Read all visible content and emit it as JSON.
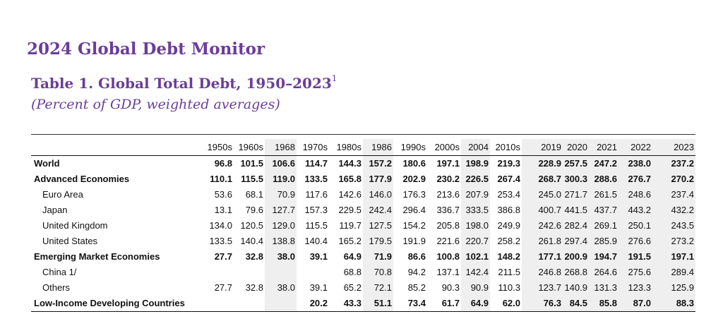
{
  "header": {
    "report_title": "2024 Global Debt Monitor",
    "table_title": "Table 1. Global Total Debt, 1950–2023",
    "table_title_footnote": "1",
    "table_subtitle": "(Percent of GDP, weighted averages)"
  },
  "colors": {
    "title_purple": "#6a3d9a",
    "shade_gray": "#efefef"
  },
  "table": {
    "columns": [
      "1950s",
      "1960s",
      "1968",
      "1970s",
      "1980s",
      "1986",
      "1990s",
      "2000s",
      "2004",
      "2010s",
      "2019",
      "2020",
      "2021",
      "2022",
      "2023"
    ],
    "rows": [
      {
        "label": "World",
        "bold": true,
        "indent": false,
        "values": [
          "96.8",
          "101.5",
          "106.6",
          "114.7",
          "144.3",
          "157.2",
          "180.6",
          "197.1",
          "198.9",
          "219.3",
          "228.9",
          "257.5",
          "247.2",
          "238.0",
          "237.2"
        ]
      },
      {
        "label": "Advanced Economies",
        "bold": true,
        "indent": false,
        "values": [
          "110.1",
          "115.5",
          "119.0",
          "133.5",
          "165.8",
          "177.9",
          "202.9",
          "230.2",
          "226.5",
          "267.4",
          "268.7",
          "300.3",
          "288.6",
          "276.7",
          "270.2"
        ]
      },
      {
        "label": "Euro Area",
        "bold": false,
        "indent": true,
        "values": [
          "53.6",
          "68.1",
          "70.9",
          "117.6",
          "142.6",
          "146.0",
          "176.3",
          "213.6",
          "207.9",
          "253.4",
          "245.0",
          "271.7",
          "261.5",
          "248.6",
          "237.4"
        ]
      },
      {
        "label": "Japan",
        "bold": false,
        "indent": true,
        "values": [
          "13.1",
          "79.6",
          "127.7",
          "157.3",
          "229.5",
          "242.4",
          "296.4",
          "336.7",
          "333.5",
          "386.8",
          "400.7",
          "441.5",
          "437.7",
          "443.2",
          "432.2"
        ]
      },
      {
        "label": "United Kingdom",
        "bold": false,
        "indent": true,
        "values": [
          "134.0",
          "120.5",
          "129.0",
          "115.5",
          "119.7",
          "127.5",
          "154.2",
          "205.8",
          "198.0",
          "249.9",
          "242.6",
          "282.4",
          "269.1",
          "250.1",
          "243.5"
        ]
      },
      {
        "label": "United States",
        "bold": false,
        "indent": true,
        "values": [
          "133.5",
          "140.4",
          "138.8",
          "140.4",
          "165.2",
          "179.5",
          "191.9",
          "221.6",
          "220.7",
          "258.2",
          "261.8",
          "297.4",
          "285.9",
          "276.6",
          "273.2"
        ]
      },
      {
        "label": "Emerging Market Economies",
        "bold": true,
        "indent": false,
        "values": [
          "27.7",
          "32.8",
          "38.0",
          "39.1",
          "64.9",
          "71.9",
          "86.6",
          "100.8",
          "102.1",
          "148.2",
          "177.1",
          "200.9",
          "194.7",
          "191.5",
          "197.1"
        ]
      },
      {
        "label": "China 1/",
        "bold": false,
        "indent": true,
        "values": [
          "",
          "",
          "",
          "",
          "68.8",
          "70.8",
          "94.2",
          "137.1",
          "142.4",
          "211.5",
          "246.8",
          "268.8",
          "264.6",
          "275.6",
          "289.4"
        ]
      },
      {
        "label": "Others",
        "bold": false,
        "indent": true,
        "values": [
          "27.7",
          "32.8",
          "38.0",
          "39.1",
          "65.2",
          "72.1",
          "85.2",
          "90.3",
          "90.9",
          "110.3",
          "123.7",
          "140.9",
          "131.3",
          "123.3",
          "125.9"
        ]
      },
      {
        "label": "Low-Income Developing Countries",
        "bold": true,
        "indent": false,
        "values": [
          "",
          "",
          "",
          "20.2",
          "43.3",
          "51.1",
          "73.4",
          "61.7",
          "64.9",
          "62.0",
          "76.3",
          "84.5",
          "85.8",
          "87.0",
          "88.3"
        ]
      }
    ]
  }
}
